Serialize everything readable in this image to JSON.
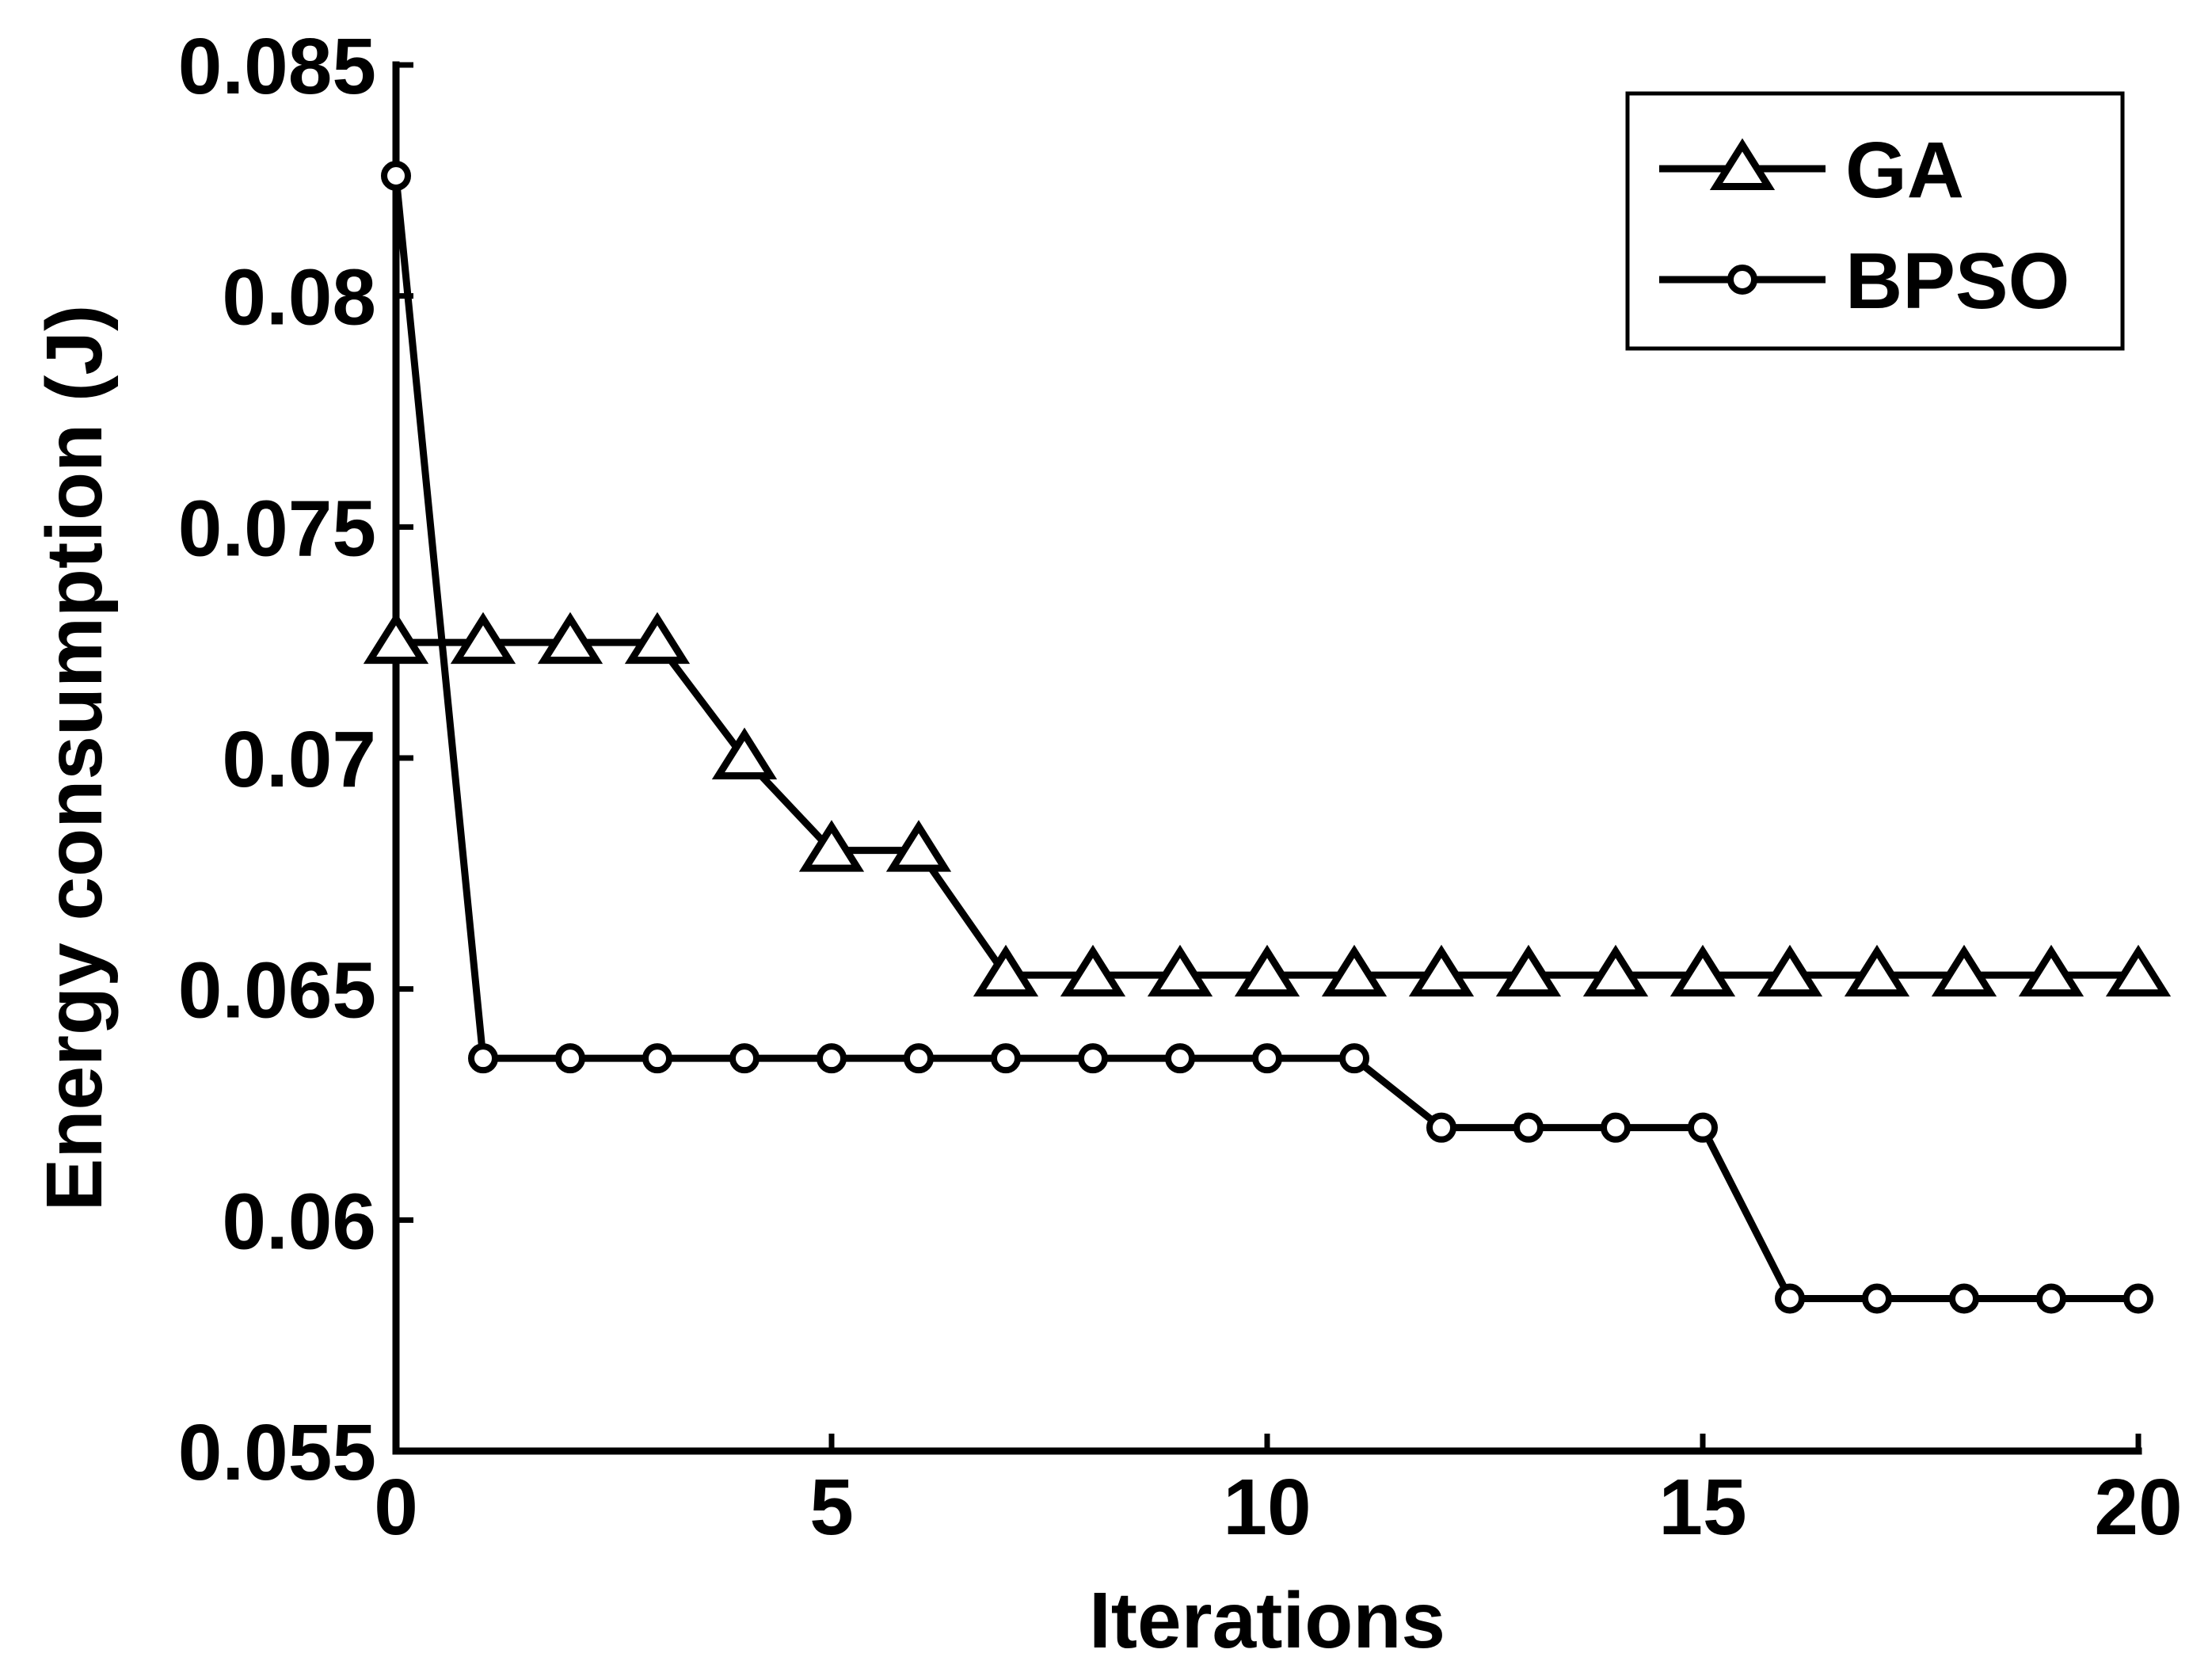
{
  "chart_data": {
    "type": "line",
    "title": "",
    "xlabel": "Iterations",
    "ylabel": "Energy consumption (J)",
    "xlim": [
      0,
      20
    ],
    "ylim": [
      0.055,
      0.085
    ],
    "xticks": [
      0,
      5,
      10,
      15,
      20
    ],
    "xtick_labels": [
      "0",
      "5",
      "10",
      "15",
      "20"
    ],
    "yticks": [
      0.055,
      0.06,
      0.065,
      0.07,
      0.075,
      0.08,
      0.085
    ],
    "ytick_labels": [
      "0.055",
      "0.06",
      "0.065",
      "0.07",
      "0.075",
      "0.08",
      "0.085"
    ],
    "grid": false,
    "legend_position": "top-right",
    "x": [
      0,
      1,
      2,
      3,
      4,
      5,
      6,
      7,
      8,
      9,
      10,
      11,
      12,
      13,
      14,
      15,
      16,
      17,
      18,
      19,
      20
    ],
    "series": [
      {
        "name": "GA",
        "marker": "triangle",
        "color": "#000000",
        "values": [
          0.0725,
          0.0725,
          0.0725,
          0.0725,
          0.07,
          0.068,
          0.068,
          0.0653,
          0.0653,
          0.0653,
          0.0653,
          0.0653,
          0.0653,
          0.0653,
          0.0653,
          0.0653,
          0.0653,
          0.0653,
          0.0653,
          0.0653,
          0.0653
        ]
      },
      {
        "name": "BPSO",
        "marker": "circle",
        "color": "#000000",
        "values": [
          0.0826,
          0.0635,
          0.0635,
          0.0635,
          0.0635,
          0.0635,
          0.0635,
          0.0635,
          0.0635,
          0.0635,
          0.0635,
          0.0635,
          0.062,
          0.062,
          0.062,
          0.062,
          0.0583,
          0.0583,
          0.0583,
          0.0583,
          0.0583
        ]
      }
    ]
  }
}
